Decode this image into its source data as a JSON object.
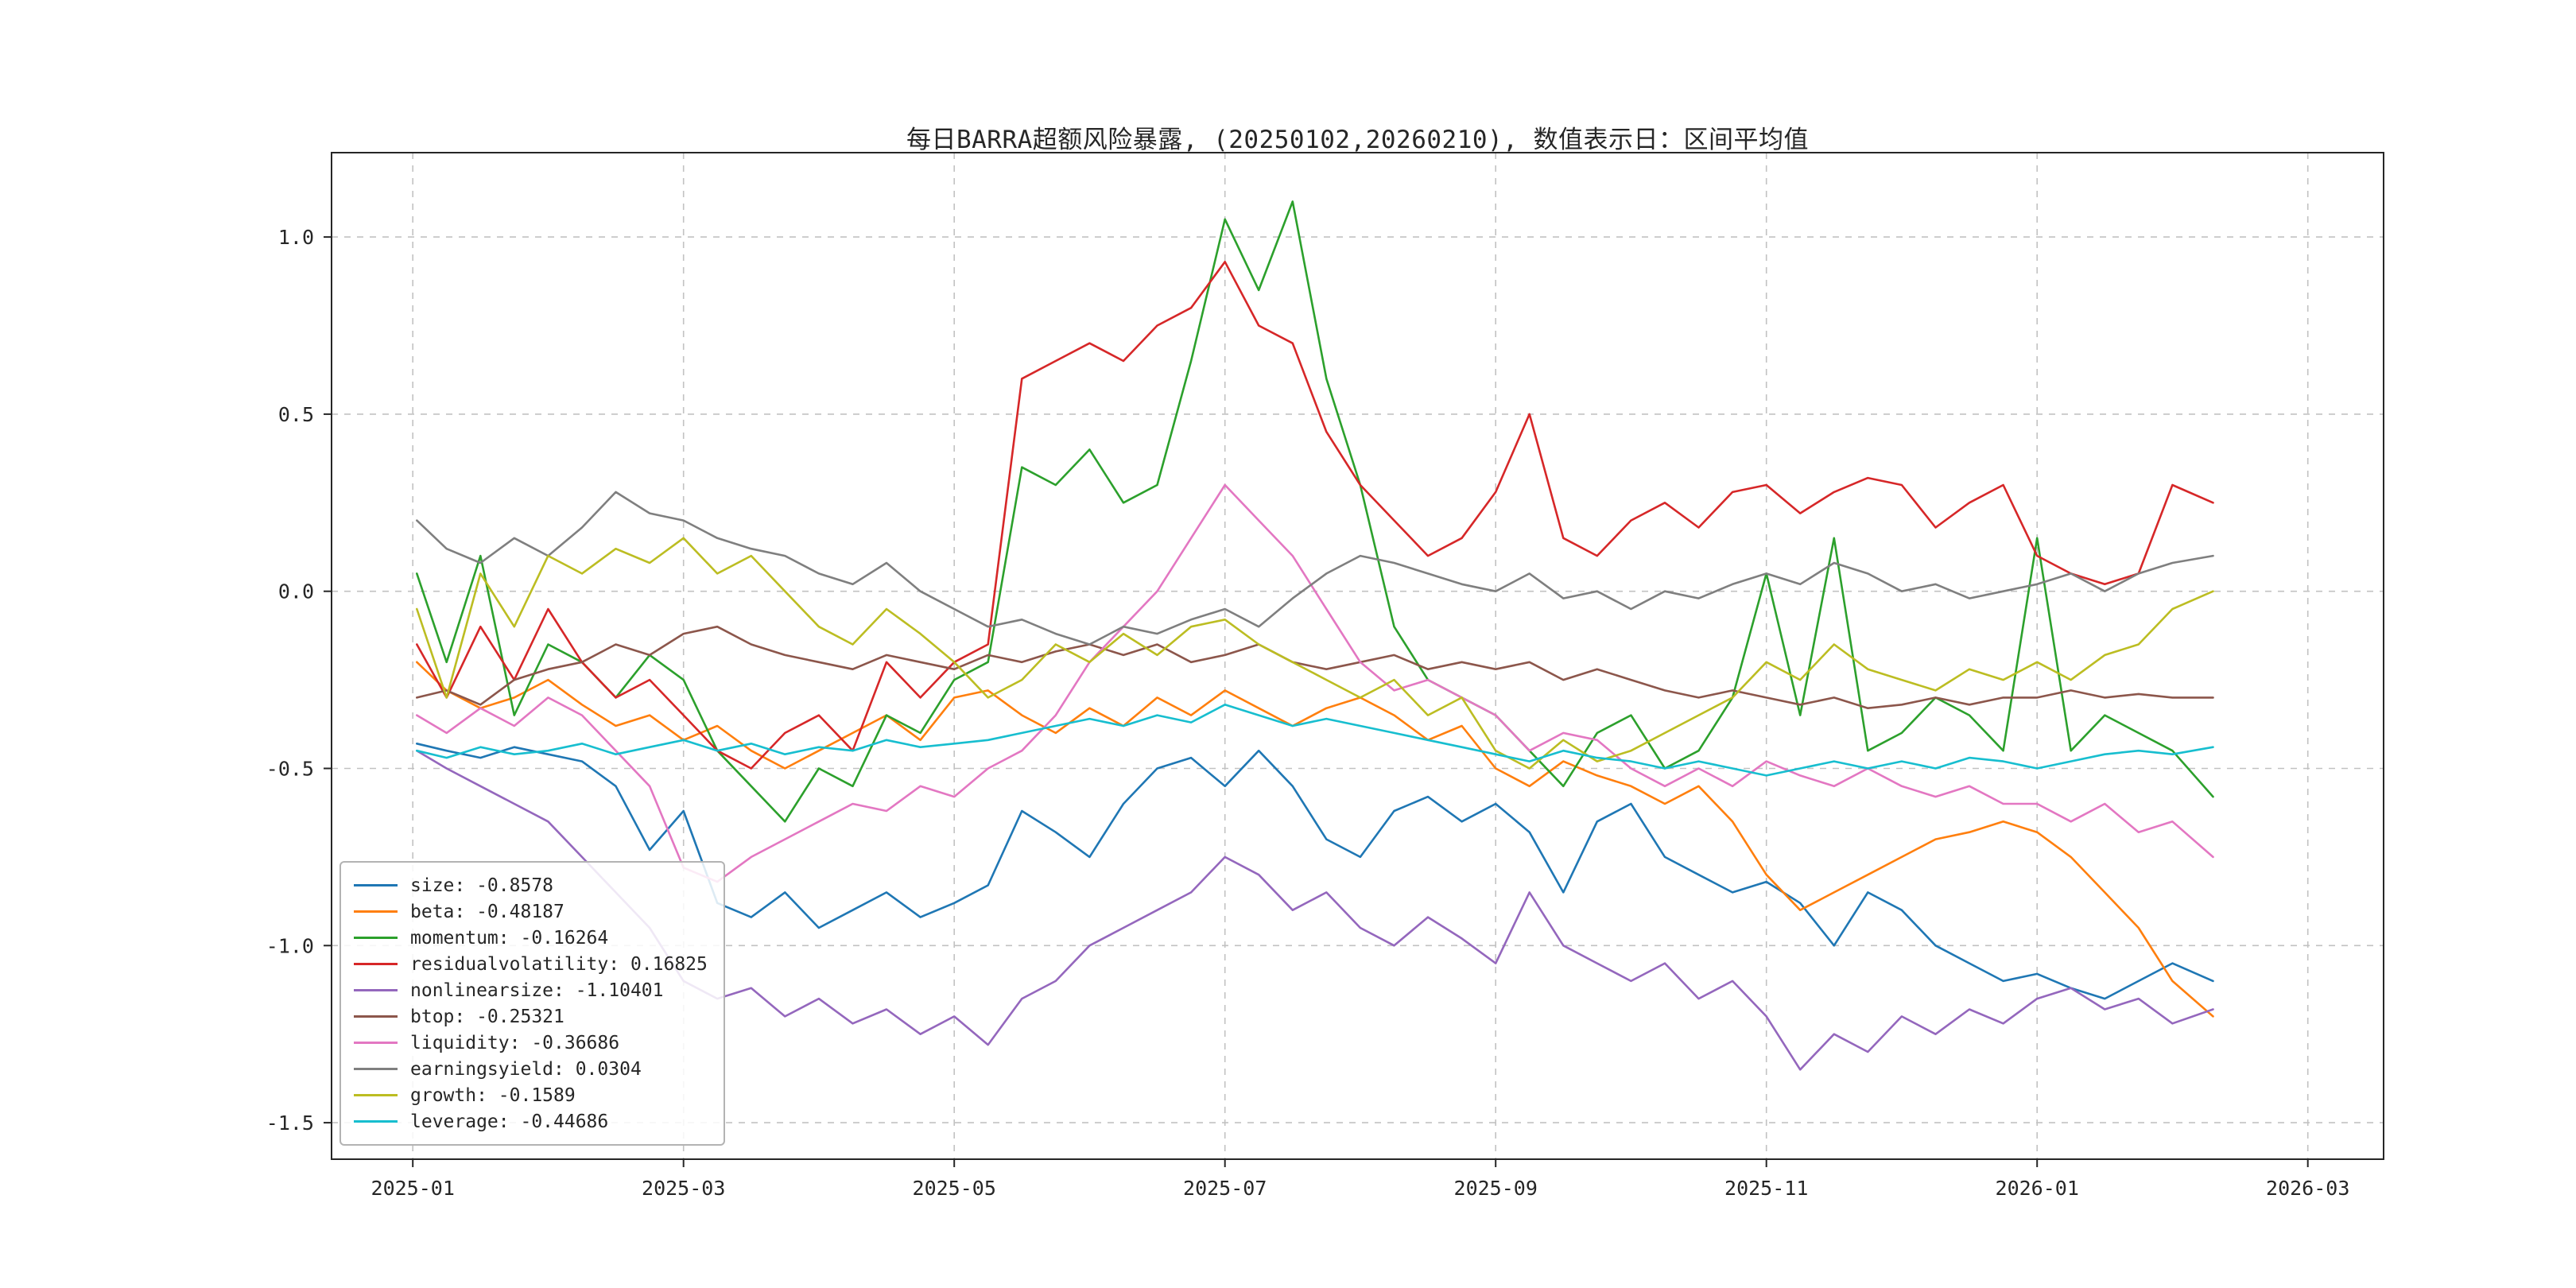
{
  "page": {
    "background_color": "#ffffff"
  },
  "chart_data": {
    "type": "line",
    "title": "每日BARRA超额风险暴露, (20250102,20260210),  数值表示日：区间平均值",
    "xlabel": "",
    "ylabel": "",
    "grid": true,
    "grid_style": "dashed",
    "legend_position": "lower-left",
    "x_unit": "months-since-2025-01-01",
    "date_range": [
      "20250102",
      "20260210"
    ],
    "xlim": [
      -0.6,
      14.56
    ],
    "ylim": [
      -1.603,
      1.238
    ],
    "xticks": {
      "positions": [
        0,
        2,
        4,
        6,
        8,
        10,
        12,
        14
      ],
      "labels": [
        "2025-01",
        "2025-03",
        "2025-05",
        "2025-07",
        "2025-09",
        "2025-11",
        "2026-01",
        "2026-03"
      ]
    },
    "yticks": {
      "positions": [
        1.0,
        0.5,
        0.0,
        -0.5,
        -1.0,
        -1.5
      ],
      "labels": [
        "1.0",
        "0.5",
        "0.0",
        "-0.5",
        "-1.0",
        "-1.5"
      ]
    },
    "x": [
      0.03,
      0.25,
      0.5,
      0.75,
      1.0,
      1.25,
      1.5,
      1.75,
      2.0,
      2.25,
      2.5,
      2.75,
      3.0,
      3.25,
      3.5,
      3.75,
      4.0,
      4.25,
      4.5,
      4.75,
      5.0,
      5.25,
      5.5,
      5.75,
      6.0,
      6.25,
      6.5,
      6.75,
      7.0,
      7.25,
      7.5,
      7.75,
      8.0,
      8.25,
      8.5,
      8.75,
      9.0,
      9.25,
      9.5,
      9.75,
      10.0,
      10.25,
      10.5,
      10.75,
      11.0,
      11.25,
      11.5,
      11.75,
      12.0,
      12.25,
      12.5,
      12.75,
      13.0,
      13.3
    ],
    "series": [
      {
        "name": "size",
        "avg": "-0.8578",
        "color": "#1f77b4",
        "values": [
          -0.43,
          -0.45,
          -0.47,
          -0.44,
          -0.46,
          -0.48,
          -0.55,
          -0.73,
          -0.62,
          -0.88,
          -0.92,
          -0.85,
          -0.95,
          -0.9,
          -0.85,
          -0.92,
          -0.88,
          -0.83,
          -0.62,
          -0.68,
          -0.75,
          -0.6,
          -0.5,
          -0.47,
          -0.55,
          -0.45,
          -0.55,
          -0.7,
          -0.75,
          -0.62,
          -0.58,
          -0.65,
          -0.6,
          -0.68,
          -0.85,
          -0.65,
          -0.6,
          -0.75,
          -0.8,
          -0.85,
          -0.82,
          -0.88,
          -1.0,
          -0.85,
          -0.9,
          -1.0,
          -1.05,
          -1.1,
          -1.08,
          -1.12,
          -1.15,
          -1.1,
          -1.05,
          -1.1
        ]
      },
      {
        "name": "beta",
        "avg": "-0.48187",
        "color": "#ff7f0e",
        "values": [
          -0.2,
          -0.28,
          -0.33,
          -0.3,
          -0.25,
          -0.32,
          -0.38,
          -0.35,
          -0.42,
          -0.38,
          -0.45,
          -0.5,
          -0.45,
          -0.4,
          -0.35,
          -0.42,
          -0.3,
          -0.28,
          -0.35,
          -0.4,
          -0.33,
          -0.38,
          -0.3,
          -0.35,
          -0.28,
          -0.33,
          -0.38,
          -0.33,
          -0.3,
          -0.35,
          -0.42,
          -0.38,
          -0.5,
          -0.55,
          -0.48,
          -0.52,
          -0.55,
          -0.6,
          -0.55,
          -0.65,
          -0.8,
          -0.9,
          -0.85,
          -0.8,
          -0.75,
          -0.7,
          -0.68,
          -0.65,
          -0.68,
          -0.75,
          -0.85,
          -0.95,
          -1.1,
          -1.2
        ]
      },
      {
        "name": "momentum",
        "avg": "-0.16264",
        "color": "#2ca02c",
        "values": [
          0.05,
          -0.2,
          0.1,
          -0.35,
          -0.15,
          -0.2,
          -0.3,
          -0.18,
          -0.25,
          -0.45,
          -0.55,
          -0.65,
          -0.5,
          -0.55,
          -0.35,
          -0.4,
          -0.25,
          -0.2,
          0.35,
          0.3,
          0.4,
          0.25,
          0.3,
          0.65,
          1.05,
          0.85,
          1.1,
          0.6,
          0.3,
          -0.1,
          -0.25,
          -0.3,
          -0.35,
          -0.45,
          -0.55,
          -0.4,
          -0.35,
          -0.5,
          -0.45,
          -0.3,
          0.05,
          -0.35,
          0.15,
          -0.45,
          -0.4,
          -0.3,
          -0.35,
          -0.45,
          0.15,
          -0.45,
          -0.35,
          -0.4,
          -0.45,
          -0.58
        ]
      },
      {
        "name": "residualvolatility",
        "avg": "0.16825",
        "color": "#d62728",
        "values": [
          -0.15,
          -0.3,
          -0.1,
          -0.25,
          -0.05,
          -0.2,
          -0.3,
          -0.25,
          -0.35,
          -0.45,
          -0.5,
          -0.4,
          -0.35,
          -0.45,
          -0.2,
          -0.3,
          -0.2,
          -0.15,
          0.6,
          0.65,
          0.7,
          0.65,
          0.75,
          0.8,
          0.93,
          0.75,
          0.7,
          0.45,
          0.3,
          0.2,
          0.1,
          0.15,
          0.28,
          0.5,
          0.15,
          0.1,
          0.2,
          0.25,
          0.18,
          0.28,
          0.3,
          0.22,
          0.28,
          0.32,
          0.3,
          0.18,
          0.25,
          0.3,
          0.1,
          0.05,
          0.02,
          0.05,
          0.3,
          0.25
        ]
      },
      {
        "name": "nonlinearsize",
        "avg": "-1.10401",
        "color": "#9467bd",
        "values": [
          -0.45,
          -0.5,
          -0.55,
          -0.6,
          -0.65,
          -0.75,
          -0.85,
          -0.95,
          -1.1,
          -1.15,
          -1.12,
          -1.2,
          -1.15,
          -1.22,
          -1.18,
          -1.25,
          -1.2,
          -1.28,
          -1.15,
          -1.1,
          -1.0,
          -0.95,
          -0.9,
          -0.85,
          -0.75,
          -0.8,
          -0.9,
          -0.85,
          -0.95,
          -1.0,
          -0.92,
          -0.98,
          -1.05,
          -0.85,
          -1.0,
          -1.05,
          -1.1,
          -1.05,
          -1.15,
          -1.1,
          -1.2,
          -1.35,
          -1.25,
          -1.3,
          -1.2,
          -1.25,
          -1.18,
          -1.22,
          -1.15,
          -1.12,
          -1.18,
          -1.15,
          -1.22,
          -1.18
        ]
      },
      {
        "name": "btop",
        "avg": "-0.25321",
        "color": "#8c564b",
        "values": [
          -0.3,
          -0.28,
          -0.32,
          -0.25,
          -0.22,
          -0.2,
          -0.15,
          -0.18,
          -0.12,
          -0.1,
          -0.15,
          -0.18,
          -0.2,
          -0.22,
          -0.18,
          -0.2,
          -0.22,
          -0.18,
          -0.2,
          -0.17,
          -0.15,
          -0.18,
          -0.15,
          -0.2,
          -0.18,
          -0.15,
          -0.2,
          -0.22,
          -0.2,
          -0.18,
          -0.22,
          -0.2,
          -0.22,
          -0.2,
          -0.25,
          -0.22,
          -0.25,
          -0.28,
          -0.3,
          -0.28,
          -0.3,
          -0.32,
          -0.3,
          -0.33,
          -0.32,
          -0.3,
          -0.32,
          -0.3,
          -0.3,
          -0.28,
          -0.3,
          -0.29,
          -0.3,
          -0.3
        ]
      },
      {
        "name": "liquidity",
        "avg": "-0.36686",
        "color": "#e377c2",
        "values": [
          -0.35,
          -0.4,
          -0.33,
          -0.38,
          -0.3,
          -0.35,
          -0.45,
          -0.55,
          -0.78,
          -0.82,
          -0.75,
          -0.7,
          -0.65,
          -0.6,
          -0.62,
          -0.55,
          -0.58,
          -0.5,
          -0.45,
          -0.35,
          -0.2,
          -0.1,
          0.0,
          0.15,
          0.3,
          0.2,
          0.1,
          -0.05,
          -0.2,
          -0.28,
          -0.25,
          -0.3,
          -0.35,
          -0.45,
          -0.4,
          -0.42,
          -0.5,
          -0.55,
          -0.5,
          -0.55,
          -0.48,
          -0.52,
          -0.55,
          -0.5,
          -0.55,
          -0.58,
          -0.55,
          -0.6,
          -0.6,
          -0.65,
          -0.6,
          -0.68,
          -0.65,
          -0.75
        ]
      },
      {
        "name": "earningsyield",
        "avg": "0.0304",
        "color": "#7f7f7f",
        "values": [
          0.2,
          0.12,
          0.08,
          0.15,
          0.1,
          0.18,
          0.28,
          0.22,
          0.2,
          0.15,
          0.12,
          0.1,
          0.05,
          0.02,
          0.08,
          0.0,
          -0.05,
          -0.1,
          -0.08,
          -0.12,
          -0.15,
          -0.1,
          -0.12,
          -0.08,
          -0.05,
          -0.1,
          -0.02,
          0.05,
          0.1,
          0.08,
          0.05,
          0.02,
          0.0,
          0.05,
          -0.02,
          0.0,
          -0.05,
          0.0,
          -0.02,
          0.02,
          0.05,
          0.02,
          0.08,
          0.05,
          0.0,
          0.02,
          -0.02,
          0.0,
          0.02,
          0.05,
          0.0,
          0.05,
          0.08,
          0.1
        ]
      },
      {
        "name": "growth",
        "avg": "-0.1589",
        "color": "#bcbd22",
        "values": [
          -0.05,
          -0.3,
          0.05,
          -0.1,
          0.1,
          0.05,
          0.12,
          0.08,
          0.15,
          0.05,
          0.1,
          0.0,
          -0.1,
          -0.15,
          -0.05,
          -0.12,
          -0.2,
          -0.3,
          -0.25,
          -0.15,
          -0.2,
          -0.12,
          -0.18,
          -0.1,
          -0.08,
          -0.15,
          -0.2,
          -0.25,
          -0.3,
          -0.25,
          -0.35,
          -0.3,
          -0.45,
          -0.5,
          -0.42,
          -0.48,
          -0.45,
          -0.4,
          -0.35,
          -0.3,
          -0.2,
          -0.25,
          -0.15,
          -0.22,
          -0.25,
          -0.28,
          -0.22,
          -0.25,
          -0.2,
          -0.25,
          -0.18,
          -0.15,
          -0.05,
          0.0
        ]
      },
      {
        "name": "leverage",
        "avg": "-0.44686",
        "color": "#17becf",
        "values": [
          -0.45,
          -0.47,
          -0.44,
          -0.46,
          -0.45,
          -0.43,
          -0.46,
          -0.44,
          -0.42,
          -0.45,
          -0.43,
          -0.46,
          -0.44,
          -0.45,
          -0.42,
          -0.44,
          -0.43,
          -0.42,
          -0.4,
          -0.38,
          -0.36,
          -0.38,
          -0.35,
          -0.37,
          -0.32,
          -0.35,
          -0.38,
          -0.36,
          -0.38,
          -0.4,
          -0.42,
          -0.44,
          -0.46,
          -0.48,
          -0.45,
          -0.47,
          -0.48,
          -0.5,
          -0.48,
          -0.5,
          -0.52,
          -0.5,
          -0.48,
          -0.5,
          -0.48,
          -0.5,
          -0.47,
          -0.48,
          -0.5,
          -0.48,
          -0.46,
          -0.45,
          -0.46,
          -0.44
        ]
      }
    ]
  }
}
